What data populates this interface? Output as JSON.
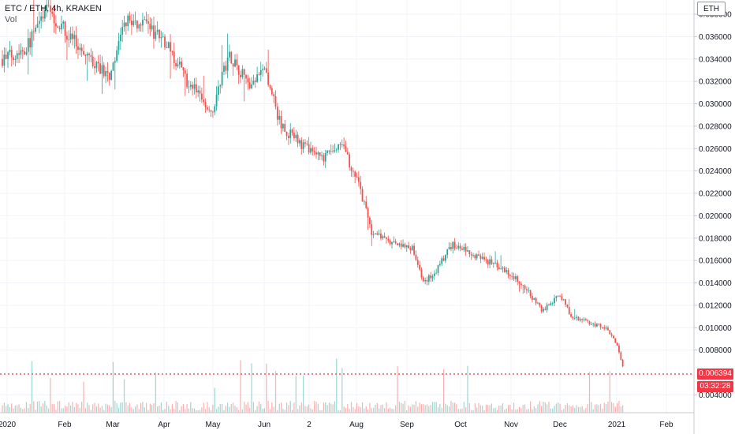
{
  "header": {
    "symbol_line": "ETC / ETH, 4h, KRAKEN",
    "volume_label": "Vol",
    "currency": "ETH"
  },
  "price_tag": {
    "last_price": "0.006394",
    "countdown": "03:32:28"
  },
  "colors": {
    "up": "#26a69a",
    "down": "#ef5350",
    "grid": "#f0f3fa",
    "axis_text": "#131722",
    "last_price": "#f23645"
  },
  "chart_data": {
    "type": "candlestick",
    "title": "ETC / ETH, 4h, KRAKEN",
    "y_axis": {
      "unit": "ETH",
      "ticks": [
        "0.038000",
        "0.036000",
        "0.034000",
        "0.032000",
        "0.030000",
        "0.028000",
        "0.026000",
        "0.024000",
        "0.022000",
        "0.020000",
        "0.018000",
        "0.016000",
        "0.014000",
        "0.012000",
        "0.010000",
        "0.008000",
        "0.004000"
      ],
      "range": [
        0.0025,
        0.039
      ]
    },
    "x_axis": {
      "labels": [
        "2020",
        "Feb",
        "Mar",
        "Apr",
        "May",
        "Jun",
        "2",
        "Aug",
        "Sep",
        "Oct",
        "Nov",
        "Dec",
        "2021",
        "Feb"
      ]
    },
    "price_path": [
      {
        "date": "2020-01-01",
        "price": 0.034
      },
      {
        "date": "2020-01-15",
        "price": 0.035
      },
      {
        "date": "2020-01-28",
        "price": 0.0385
      },
      {
        "date": "2020-02-10",
        "price": 0.036
      },
      {
        "date": "2020-02-25",
        "price": 0.0335
      },
      {
        "date": "2020-03-05",
        "price": 0.0325
      },
      {
        "date": "2020-03-15",
        "price": 0.0375
      },
      {
        "date": "2020-03-25",
        "price": 0.037
      },
      {
        "date": "2020-04-05",
        "price": 0.036
      },
      {
        "date": "2020-04-20",
        "price": 0.032
      },
      {
        "date": "2020-05-05",
        "price": 0.0295
      },
      {
        "date": "2020-05-15",
        "price": 0.0345
      },
      {
        "date": "2020-05-28",
        "price": 0.0315
      },
      {
        "date": "2020-06-05",
        "price": 0.033
      },
      {
        "date": "2020-06-15",
        "price": 0.028
      },
      {
        "date": "2020-06-28",
        "price": 0.0262
      },
      {
        "date": "2020-07-10",
        "price": 0.025
      },
      {
        "date": "2020-07-20",
        "price": 0.0265
      },
      {
        "date": "2020-07-30",
        "price": 0.0235
      },
      {
        "date": "2020-08-08",
        "price": 0.0185
      },
      {
        "date": "2020-08-20",
        "price": 0.0175
      },
      {
        "date": "2020-09-01",
        "price": 0.0172
      },
      {
        "date": "2020-09-08",
        "price": 0.014
      },
      {
        "date": "2020-09-15",
        "price": 0.015
      },
      {
        "date": "2020-09-25",
        "price": 0.0175
      },
      {
        "date": "2020-10-08",
        "price": 0.0165
      },
      {
        "date": "2020-10-22",
        "price": 0.0155
      },
      {
        "date": "2020-11-05",
        "price": 0.014
      },
      {
        "date": "2020-11-18",
        "price": 0.0115
      },
      {
        "date": "2020-11-28",
        "price": 0.013
      },
      {
        "date": "2020-12-05",
        "price": 0.011
      },
      {
        "date": "2020-12-15",
        "price": 0.0105
      },
      {
        "date": "2020-12-25",
        "price": 0.01
      },
      {
        "date": "2021-01-01",
        "price": 0.0085
      },
      {
        "date": "2021-01-05",
        "price": 0.0064
      }
    ],
    "last_price": 0.006394
  }
}
